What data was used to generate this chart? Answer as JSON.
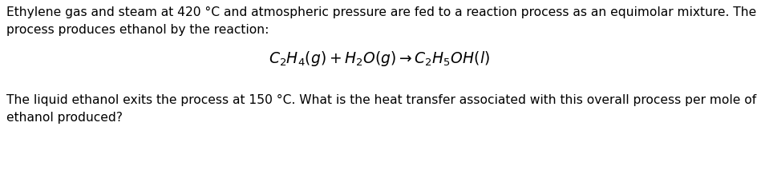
{
  "line1": "Ethylene gas and steam at 420 °C and atmospheric pressure are fed to a reaction process as an equimolar mixture. The",
  "line2": "process produces ethanol by the reaction:",
  "equation": "$C_2H_4(g) + H_2O(g) \\rightarrow C_2H_5OH(l)$",
  "line3": "The liquid ethanol exits the process at 150 °C. What is the heat transfer associated with this overall process per mole of",
  "line4": "ethanol produced?",
  "bg_color": "#ffffff",
  "text_color": "#000000",
  "font_size": 11.2,
  "eq_font_size": 13.5,
  "fig_width": 9.45,
  "fig_height": 2.13
}
